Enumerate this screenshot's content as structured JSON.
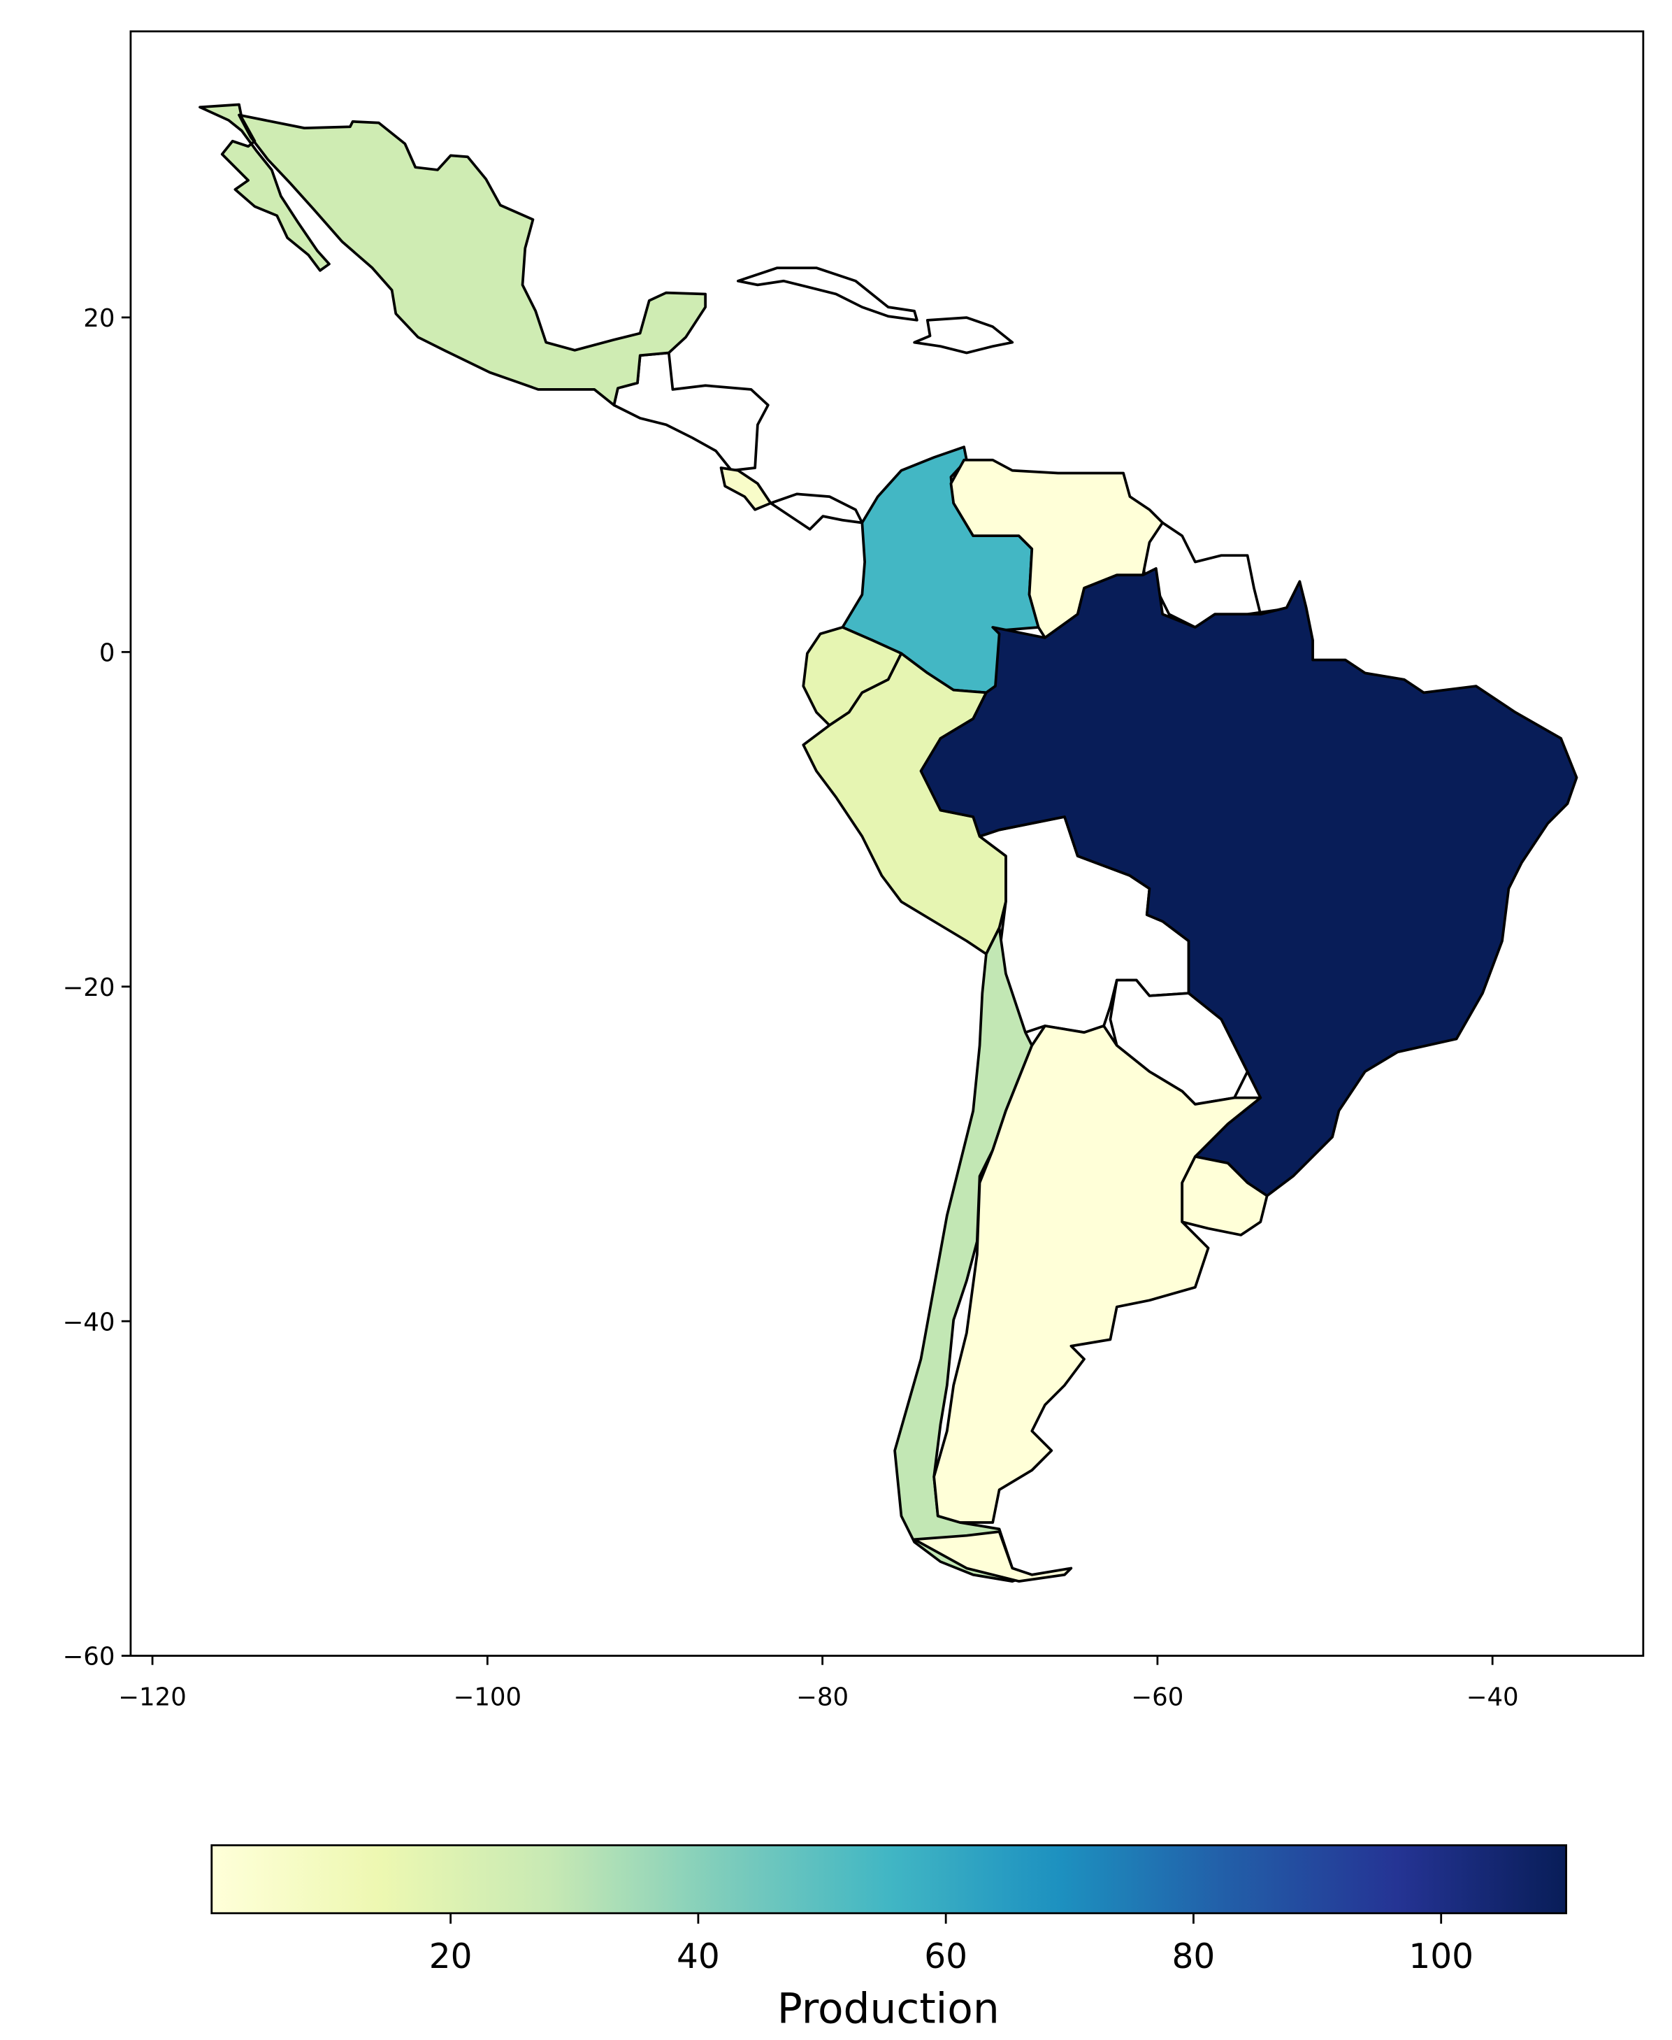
{
  "chart_data": {
    "type": "choropleth",
    "values": [
      25,
      6,
      55,
      1,
      17,
      17,
      110,
      29,
      1,
      1
    ],
    "colormap": [
      "#ffffd9",
      "#edf8b1",
      "#c7e9b4",
      "#7fcdbb",
      "#41b6c4",
      "#1d91c0",
      "#225ea8",
      "#253494",
      "#081d58"
    ],
    "clim": [
      0.7,
      110.1
    ],
    "xlim": [
      -121.3,
      -31.0
    ],
    "ylim": [
      -60,
      37.1
    ],
    "xticks": [
      {
        "value": -120,
        "label": "−120"
      },
      {
        "value": -100,
        "label": "−100"
      },
      {
        "value": -80,
        "label": "−80"
      },
      {
        "value": -60,
        "label": "−60"
      },
      {
        "value": -40,
        "label": "−40"
      }
    ],
    "yticks": [
      {
        "value": 20,
        "label": "20"
      },
      {
        "value": 0,
        "label": "0"
      },
      {
        "value": -20,
        "label": "−20"
      },
      {
        "value": -40,
        "label": "−40"
      },
      {
        "value": -60,
        "label": "−60"
      }
    ],
    "colorbar_ticks": [
      20,
      40,
      60,
      80,
      100
    ],
    "colorbar_label": "Production"
  }
}
